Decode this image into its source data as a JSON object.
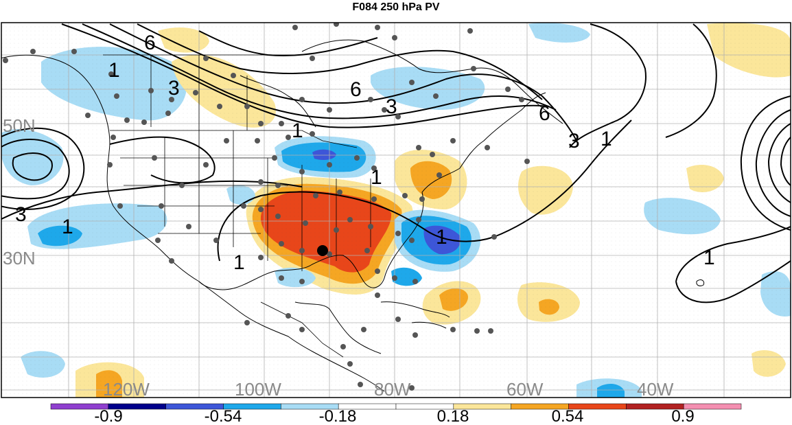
{
  "title": "F084 250 hPa PV",
  "lat_labels": [
    "50N",
    "30N"
  ],
  "lon_labels": [
    "120W",
    "100W",
    "80W",
    "60W",
    "40W"
  ],
  "contour_labels": [
    "6",
    "1",
    "3",
    "6",
    "3",
    "6",
    "3",
    "1",
    "1",
    "1",
    "1",
    "1",
    "3",
    "1",
    "1"
  ],
  "colorbar": {
    "labels": [
      "-0.9",
      "-0.54",
      "-0.18",
      "0.18",
      "0.54",
      "0.9"
    ],
    "colors": [
      "#8f3fcf",
      "#00008b",
      "#3d56d8",
      "#1ea8ea",
      "#a8dcf5",
      "#ffffff",
      "#ffffff",
      "#fbe69a",
      "#f5a623",
      "#e8461a",
      "#b22222",
      "#f48fb1"
    ]
  },
  "palette": {
    "strong_positive": "#e8461a",
    "positive": "#f5a623",
    "weak_positive": "#fbe69a",
    "weak_negative": "#a8dcf5",
    "negative": "#1ea8ea",
    "strong_negative": "#3d56d8"
  }
}
